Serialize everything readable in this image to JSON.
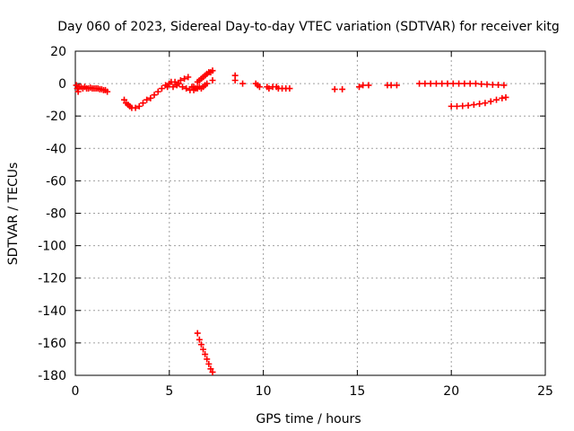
{
  "chart_data": {
    "type": "scatter",
    "title": "Day 060 of 2023, Sidereal Day-to-day VTEC variation (SDTVAR) for receiver kitg",
    "xlabel": "GPS time / hours",
    "ylabel": "SDTVAR / TECUs",
    "xlim": [
      0,
      25
    ],
    "ylim": [
      -180,
      20
    ],
    "xticks": [
      "0",
      "5",
      "10",
      "15",
      "20",
      "25"
    ],
    "yticks": [
      "20",
      "0",
      "-20",
      "-40",
      "-60",
      "-80",
      "-100",
      "-120",
      "-140",
      "-160",
      "-180"
    ],
    "grid": true,
    "marker": "plus",
    "color": "#ff0000",
    "series": [
      {
        "points": [
          [
            0.05,
            -1
          ],
          [
            0.1,
            -3
          ],
          [
            0.15,
            -5
          ],
          [
            0.2,
            -2
          ],
          [
            0.3,
            -2
          ],
          [
            0.4,
            -3
          ],
          [
            0.5,
            -2
          ],
          [
            0.6,
            -3
          ],
          [
            0.7,
            -3
          ],
          [
            0.8,
            -2.5
          ],
          [
            0.9,
            -3
          ],
          [
            1.0,
            -3
          ],
          [
            1.1,
            -3
          ],
          [
            1.2,
            -3
          ],
          [
            1.3,
            -3.5
          ],
          [
            1.4,
            -3.5
          ],
          [
            1.5,
            -4
          ],
          [
            1.6,
            -4
          ],
          [
            1.7,
            -5
          ],
          [
            2.6,
            -10
          ],
          [
            2.7,
            -12
          ],
          [
            2.8,
            -13
          ],
          [
            2.9,
            -14
          ],
          [
            3.0,
            -15
          ],
          [
            3.2,
            -15
          ],
          [
            3.4,
            -14
          ],
          [
            3.6,
            -12
          ],
          [
            3.8,
            -10
          ],
          [
            4.0,
            -9
          ],
          [
            4.2,
            -7
          ],
          [
            4.4,
            -5
          ],
          [
            4.6,
            -3
          ],
          [
            4.8,
            -1
          ],
          [
            4.9,
            -2
          ],
          [
            5.0,
            0
          ],
          [
            5.1,
            1
          ],
          [
            5.2,
            -2
          ],
          [
            5.3,
            1
          ],
          [
            5.4,
            -1
          ],
          [
            5.5,
            0
          ],
          [
            5.6,
            2
          ],
          [
            5.7,
            -2
          ],
          [
            5.8,
            3
          ],
          [
            5.9,
            -3
          ],
          [
            6.0,
            4
          ],
          [
            6.1,
            -4
          ],
          [
            6.2,
            -2
          ],
          [
            6.3,
            -4
          ],
          [
            6.4,
            -3
          ],
          [
            6.5,
            -3
          ],
          [
            6.6,
            -2
          ],
          [
            6.7,
            -3
          ],
          [
            6.8,
            -2
          ],
          [
            6.9,
            -1
          ],
          [
            7.0,
            0
          ],
          [
            6.3,
            -2
          ],
          [
            6.5,
            1
          ],
          [
            6.6,
            2
          ],
          [
            6.7,
            3
          ],
          [
            6.8,
            4
          ],
          [
            6.9,
            5
          ],
          [
            7.0,
            6
          ],
          [
            7.1,
            7
          ],
          [
            7.2,
            7
          ],
          [
            7.3,
            8
          ],
          [
            7.3,
            2
          ],
          [
            8.5,
            5
          ],
          [
            8.5,
            2
          ],
          [
            8.9,
            0
          ],
          [
            9.6,
            0
          ],
          [
            9.7,
            -1
          ],
          [
            9.8,
            -2
          ],
          [
            10.2,
            -2
          ],
          [
            10.3,
            -3
          ],
          [
            10.5,
            -2
          ],
          [
            10.7,
            -2
          ],
          [
            10.8,
            -3
          ],
          [
            11.0,
            -3
          ],
          [
            11.2,
            -3
          ],
          [
            11.4,
            -3
          ],
          [
            13.8,
            -3.5
          ],
          [
            14.2,
            -3.5
          ],
          [
            15.1,
            -2
          ],
          [
            15.3,
            -1
          ],
          [
            15.6,
            -1
          ],
          [
            16.6,
            -1
          ],
          [
            16.8,
            -1
          ],
          [
            17.1,
            -1
          ],
          [
            18.3,
            0
          ],
          [
            18.6,
            0
          ],
          [
            18.9,
            0
          ],
          [
            19.2,
            0
          ],
          [
            19.5,
            0
          ],
          [
            19.8,
            0
          ],
          [
            20.1,
            0
          ],
          [
            20.4,
            0
          ],
          [
            20.7,
            0
          ],
          [
            21.0,
            0
          ],
          [
            21.3,
            0
          ],
          [
            21.6,
            -0.3
          ],
          [
            21.9,
            -0.5
          ],
          [
            22.2,
            -0.7
          ],
          [
            22.5,
            -0.8
          ],
          [
            22.8,
            -1
          ],
          [
            20.0,
            -14
          ],
          [
            20.3,
            -14
          ],
          [
            20.6,
            -13.8
          ],
          [
            20.9,
            -13.5
          ],
          [
            21.2,
            -13
          ],
          [
            21.5,
            -12.5
          ],
          [
            21.8,
            -12
          ],
          [
            22.1,
            -11
          ],
          [
            22.4,
            -10
          ],
          [
            22.7,
            -9
          ],
          [
            22.9,
            -8.5
          ],
          [
            6.5,
            -154
          ],
          [
            6.6,
            -158
          ],
          [
            6.7,
            -161
          ],
          [
            6.8,
            -164
          ],
          [
            6.9,
            -167
          ],
          [
            7.0,
            -170
          ],
          [
            7.1,
            -173
          ],
          [
            7.2,
            -176
          ],
          [
            7.3,
            -178
          ]
        ]
      }
    ]
  }
}
